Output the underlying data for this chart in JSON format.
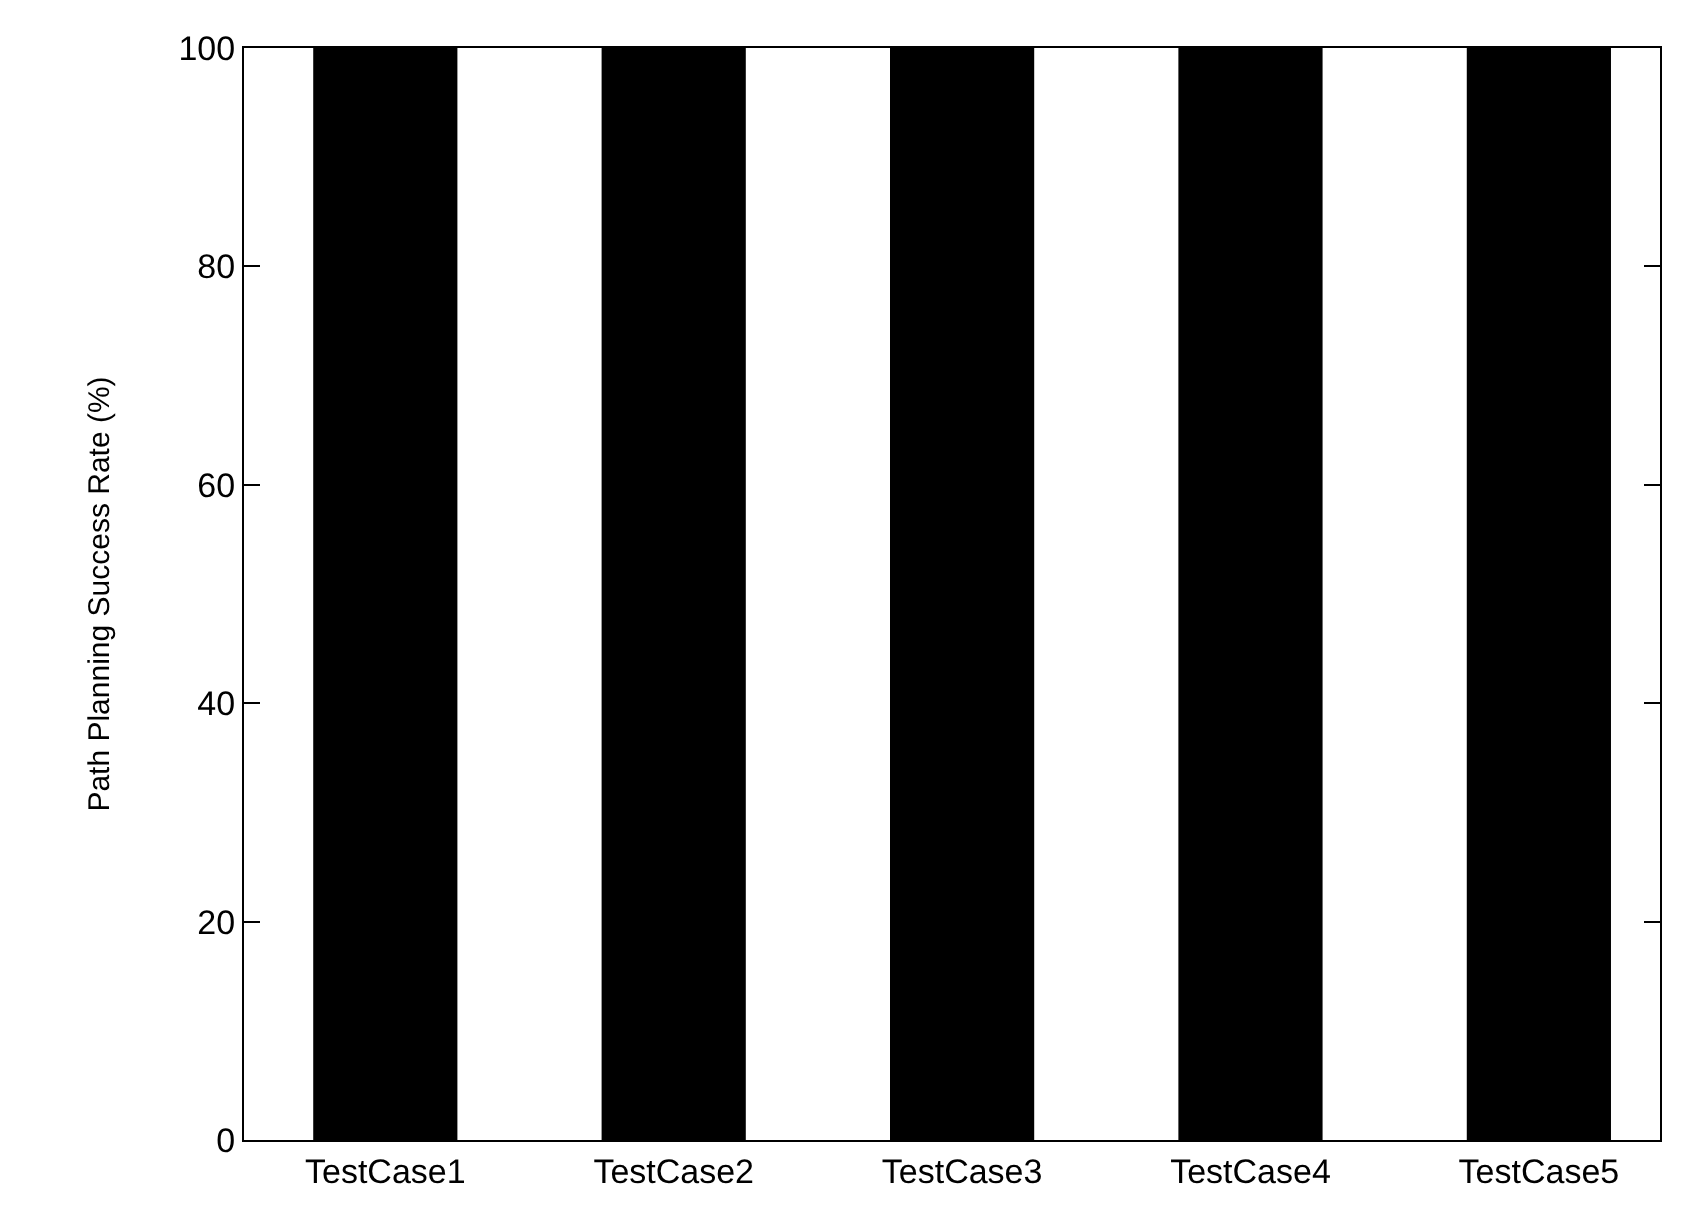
{
  "chart_data": {
    "type": "bar",
    "ylabel": "Path Planning Success Rate (%)",
    "categories": [
      "TestCase1",
      "TestCase2",
      "TestCase3",
      "TestCase4",
      "TestCase5"
    ],
    "values": [
      100,
      100,
      100,
      100,
      100
    ],
    "color": "#000000",
    "ylim": [
      0,
      100
    ],
    "yticks": [
      0,
      20,
      40,
      60,
      80,
      100
    ],
    "legend": false
  }
}
